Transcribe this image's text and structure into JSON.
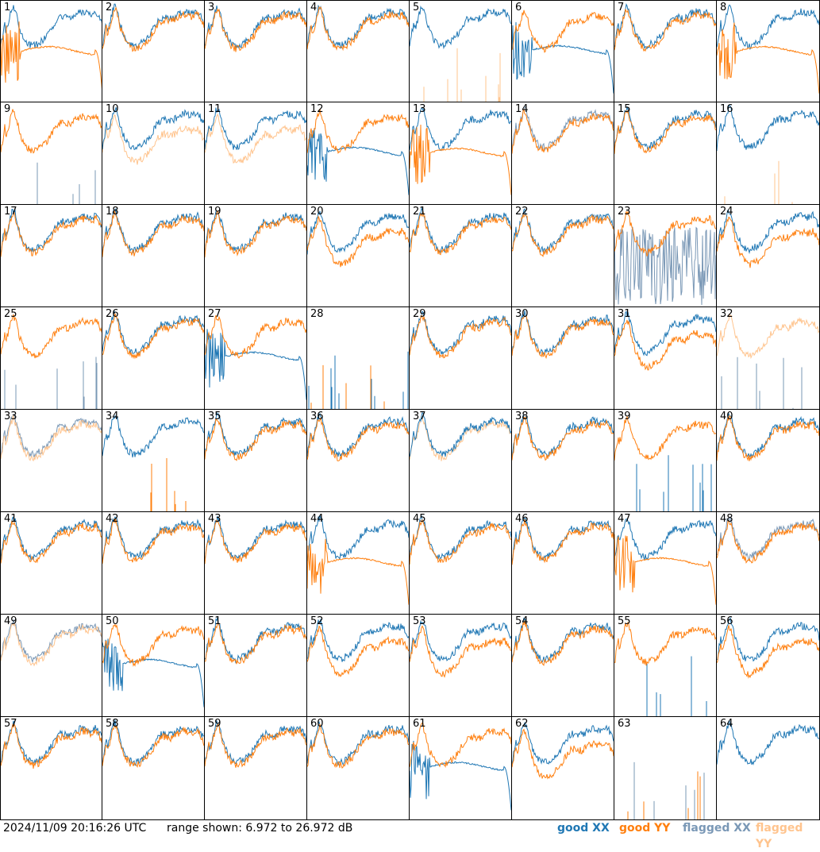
{
  "chart_data": {
    "type": "line",
    "panels": [
      {
        "n": "1",
        "xx": "good",
        "yy": "good",
        "xx_shape": "normal",
        "yy_shape": "droop"
      },
      {
        "n": "2",
        "xx": "good",
        "yy": "good",
        "xx_shape": "normal",
        "yy_shape": "normal"
      },
      {
        "n": "3",
        "xx": "good",
        "yy": "good",
        "xx_shape": "normal",
        "yy_shape": "normal"
      },
      {
        "n": "4",
        "xx": "good",
        "yy": "good",
        "xx_shape": "normal",
        "yy_shape": "normal"
      },
      {
        "n": "5",
        "xx": "good",
        "yy": "flagged",
        "xx_shape": "normal",
        "yy_shape": "spikes"
      },
      {
        "n": "6",
        "xx": "good",
        "yy": "good",
        "xx_shape": "droop",
        "yy_shape": "normal"
      },
      {
        "n": "7",
        "xx": "good",
        "yy": "good",
        "xx_shape": "normal",
        "yy_shape": "normal"
      },
      {
        "n": "8",
        "xx": "good",
        "yy": "good",
        "xx_shape": "normal",
        "yy_shape": "droop"
      },
      {
        "n": "9",
        "xx": "flagged",
        "yy": "good",
        "xx_shape": "spikes",
        "yy_shape": "normal"
      },
      {
        "n": "10",
        "xx": "good",
        "yy": "flagged",
        "xx_shape": "normal",
        "yy_shape": "low"
      },
      {
        "n": "11",
        "xx": "good",
        "yy": "flagged",
        "xx_shape": "normal",
        "yy_shape": "low"
      },
      {
        "n": "12",
        "xx": "good",
        "yy": "good",
        "xx_shape": "droop",
        "yy_shape": "normal"
      },
      {
        "n": "13",
        "xx": "good",
        "yy": "good",
        "xx_shape": "normal",
        "yy_shape": "droop"
      },
      {
        "n": "14",
        "xx": "flagged",
        "yy": "good",
        "xx_shape": "normal",
        "yy_shape": "normal"
      },
      {
        "n": "15",
        "xx": "good",
        "yy": "good",
        "xx_shape": "normal",
        "yy_shape": "normal"
      },
      {
        "n": "16",
        "xx": "good",
        "yy": "flagged",
        "xx_shape": "normal",
        "yy_shape": "spikes"
      },
      {
        "n": "17",
        "xx": "good",
        "yy": "good",
        "xx_shape": "normal",
        "yy_shape": "normal"
      },
      {
        "n": "18",
        "xx": "good",
        "yy": "good",
        "xx_shape": "normal",
        "yy_shape": "normal"
      },
      {
        "n": "19",
        "xx": "good",
        "yy": "good",
        "xx_shape": "normal",
        "yy_shape": "normal"
      },
      {
        "n": "20",
        "xx": "good",
        "yy": "good",
        "xx_shape": "normal",
        "yy_shape": "low"
      },
      {
        "n": "21",
        "xx": "good",
        "yy": "good",
        "xx_shape": "normal",
        "yy_shape": "normal"
      },
      {
        "n": "22",
        "xx": "good",
        "yy": "good",
        "xx_shape": "normal",
        "yy_shape": "normal"
      },
      {
        "n": "23",
        "xx": "flagged",
        "yy": "good",
        "xx_shape": "noisy",
        "yy_shape": "normal"
      },
      {
        "n": "24",
        "xx": "good",
        "yy": "good",
        "xx_shape": "normal",
        "yy_shape": "low"
      },
      {
        "n": "25",
        "xx": "flagged",
        "yy": "good",
        "xx_shape": "spikes",
        "yy_shape": "normal"
      },
      {
        "n": "26",
        "xx": "good",
        "yy": "good",
        "xx_shape": "normal",
        "yy_shape": "normal"
      },
      {
        "n": "27",
        "xx": "good",
        "yy": "good",
        "xx_shape": "droop",
        "yy_shape": "normal"
      },
      {
        "n": "28",
        "xx": "good",
        "yy": "good",
        "xx_shape": "spikes",
        "yy_shape": "spikes"
      },
      {
        "n": "29",
        "xx": "good",
        "yy": "good",
        "xx_shape": "normal",
        "yy_shape": "normal"
      },
      {
        "n": "30",
        "xx": "good",
        "yy": "good",
        "xx_shape": "normal",
        "yy_shape": "normal"
      },
      {
        "n": "31",
        "xx": "good",
        "yy": "good",
        "xx_shape": "normal",
        "yy_shape": "low"
      },
      {
        "n": "32",
        "xx": "flagged",
        "yy": "flagged",
        "xx_shape": "spikes",
        "yy_shape": "normal"
      },
      {
        "n": "33",
        "xx": "flagged",
        "yy": "flagged",
        "xx_shape": "normal",
        "yy_shape": "normal"
      },
      {
        "n": "34",
        "xx": "good",
        "yy": "good",
        "xx_shape": "normal",
        "yy_shape": "spikes"
      },
      {
        "n": "35",
        "xx": "good",
        "yy": "good",
        "xx_shape": "normal",
        "yy_shape": "normal"
      },
      {
        "n": "36",
        "xx": "good",
        "yy": "good",
        "xx_shape": "normal",
        "yy_shape": "normal"
      },
      {
        "n": "37",
        "xx": "good",
        "yy": "flagged",
        "xx_shape": "normal",
        "yy_shape": "normal"
      },
      {
        "n": "38",
        "xx": "good",
        "yy": "good",
        "xx_shape": "normal",
        "yy_shape": "normal"
      },
      {
        "n": "39",
        "xx": "good",
        "yy": "good",
        "xx_shape": "spikes",
        "yy_shape": "normal"
      },
      {
        "n": "40",
        "xx": "good",
        "yy": "good",
        "xx_shape": "normal",
        "yy_shape": "normal"
      },
      {
        "n": "41",
        "xx": "good",
        "yy": "good",
        "xx_shape": "normal",
        "yy_shape": "normal"
      },
      {
        "n": "42",
        "xx": "good",
        "yy": "good",
        "xx_shape": "normal",
        "yy_shape": "normal"
      },
      {
        "n": "43",
        "xx": "good",
        "yy": "good",
        "xx_shape": "normal",
        "yy_shape": "normal"
      },
      {
        "n": "44",
        "xx": "good",
        "yy": "good",
        "xx_shape": "normal",
        "yy_shape": "droop"
      },
      {
        "n": "45",
        "xx": "good",
        "yy": "good",
        "xx_shape": "normal",
        "yy_shape": "normal"
      },
      {
        "n": "46",
        "xx": "good",
        "yy": "good",
        "xx_shape": "normal",
        "yy_shape": "normal"
      },
      {
        "n": "47",
        "xx": "good",
        "yy": "good",
        "xx_shape": "normal",
        "yy_shape": "droop"
      },
      {
        "n": "48",
        "xx": "flagged",
        "yy": "good",
        "xx_shape": "normal",
        "yy_shape": "normal"
      },
      {
        "n": "49",
        "xx": "flagged",
        "yy": "flagged",
        "xx_shape": "normal",
        "yy_shape": "normal"
      },
      {
        "n": "50",
        "xx": "good",
        "yy": "good",
        "xx_shape": "droop",
        "yy_shape": "normal"
      },
      {
        "n": "51",
        "xx": "good",
        "yy": "good",
        "xx_shape": "normal",
        "yy_shape": "normal"
      },
      {
        "n": "52",
        "xx": "good",
        "yy": "good",
        "xx_shape": "normal",
        "yy_shape": "low"
      },
      {
        "n": "53",
        "xx": "good",
        "yy": "good",
        "xx_shape": "normal",
        "yy_shape": "low"
      },
      {
        "n": "54",
        "xx": "good",
        "yy": "good",
        "xx_shape": "normal",
        "yy_shape": "normal"
      },
      {
        "n": "55",
        "xx": "good",
        "yy": "good",
        "xx_shape": "spikes",
        "yy_shape": "normal"
      },
      {
        "n": "56",
        "xx": "good",
        "yy": "good",
        "xx_shape": "normal",
        "yy_shape": "low"
      },
      {
        "n": "57",
        "xx": "good",
        "yy": "good",
        "xx_shape": "normal",
        "yy_shape": "normal"
      },
      {
        "n": "58",
        "xx": "good",
        "yy": "good",
        "xx_shape": "normal",
        "yy_shape": "normal"
      },
      {
        "n": "59",
        "xx": "good",
        "yy": "good",
        "xx_shape": "normal",
        "yy_shape": "normal"
      },
      {
        "n": "60",
        "xx": "good",
        "yy": "good",
        "xx_shape": "normal",
        "yy_shape": "normal"
      },
      {
        "n": "61",
        "xx": "good",
        "yy": "good",
        "xx_shape": "droop",
        "yy_shape": "normal"
      },
      {
        "n": "62",
        "xx": "good",
        "yy": "good",
        "xx_shape": "normal",
        "yy_shape": "low"
      },
      {
        "n": "63",
        "xx": "flagged",
        "yy": "good",
        "xx_shape": "spikes",
        "yy_shape": "spikes"
      },
      {
        "n": "64",
        "xx": "good",
        "yy": "flagged",
        "xx_shape": "normal",
        "yy_shape": "none"
      }
    ],
    "range_min_db": 6.972,
    "range_max_db": 26.972
  },
  "footer": {
    "timestamp": "2024/11/09 20:16:26 UTC",
    "range": "range shown: 6.972 to 26.972 dB"
  },
  "legend": {
    "good_xx": "good XX",
    "good_yy": "good YY",
    "flagged_xx": "flagged XX",
    "flagged_yy": "flagged YY"
  },
  "colors": {
    "good_xx": "#1f77b4",
    "good_yy": "#ff7f0e",
    "flagged_xx": "#7a98b6",
    "flagged_yy": "#ffc48e"
  }
}
